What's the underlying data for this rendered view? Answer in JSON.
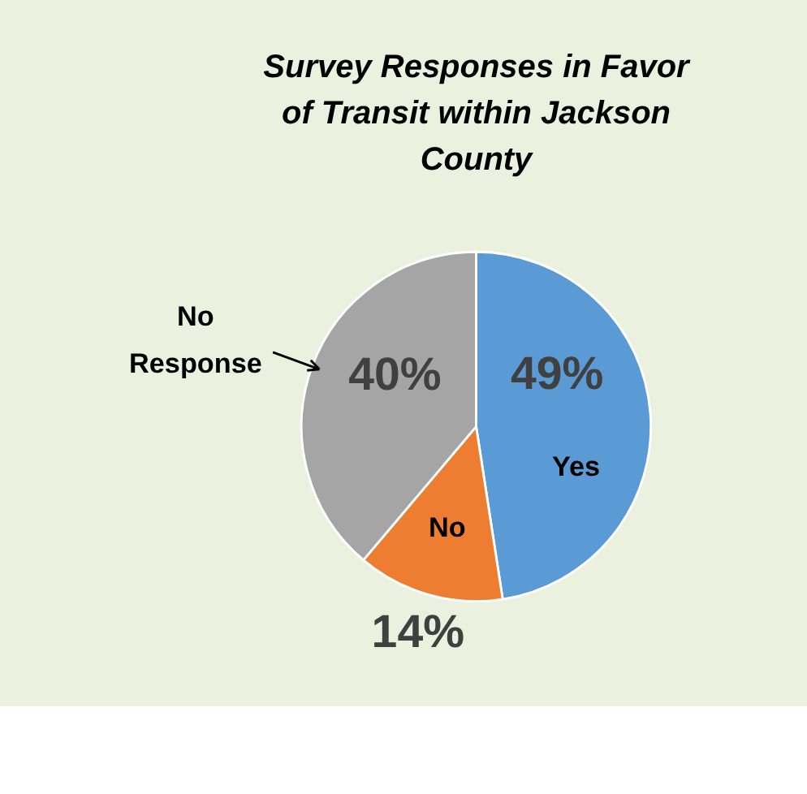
{
  "chart_data": {
    "type": "pie",
    "title": "Survey Responses in Favor of Transit within Jackson County",
    "categories": [
      "Yes",
      "No",
      "No Response"
    ],
    "values": [
      49,
      14,
      40
    ],
    "value_labels": [
      "49%",
      "14%",
      "40%"
    ],
    "colors": [
      "#5b9bd5",
      "#ed7d31",
      "#a5a5a5"
    ],
    "legend": false
  }
}
